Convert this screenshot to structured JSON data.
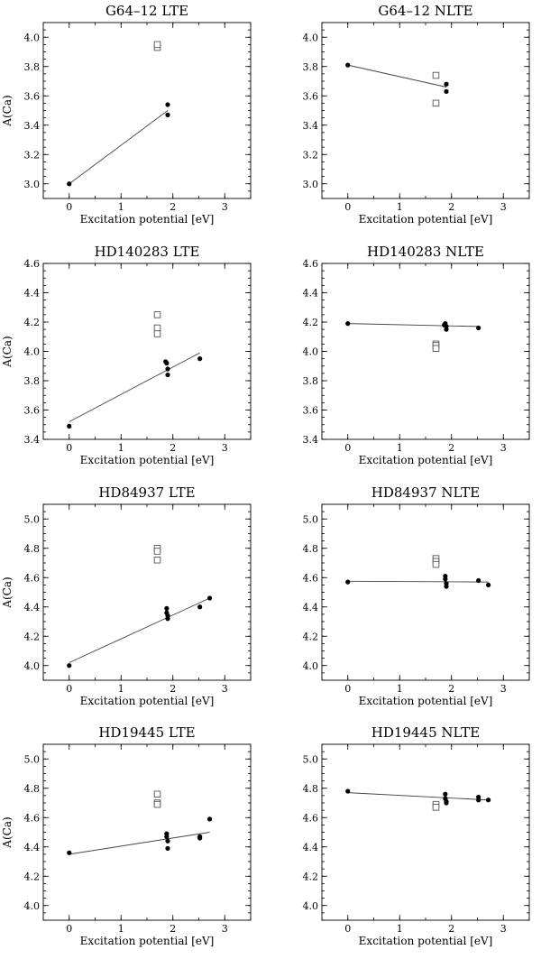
{
  "chart_data": [
    {
      "type": "scatter",
      "title": "G64–12 LTE",
      "xlabel": "Excitation potential [eV]",
      "ylabel": "A(Ca)",
      "xlim": [
        -0.5,
        3.5
      ],
      "ylim": [
        2.9,
        4.1
      ],
      "xticks": [
        0,
        1,
        2,
        3
      ],
      "yticks": [
        3.0,
        3.2,
        3.4,
        3.6,
        3.8,
        4.0
      ],
      "series": [
        {
          "marker": "filled-circle",
          "points": [
            [
              0.0,
              3.0
            ],
            [
              1.9,
              3.47
            ],
            [
              1.9,
              3.54
            ]
          ]
        },
        {
          "marker": "open-square",
          "points": [
            [
              1.7,
              3.93
            ],
            [
              1.7,
              3.95
            ]
          ]
        }
      ],
      "fit": [
        [
          0.0,
          3.0
        ],
        [
          1.9,
          3.5
        ]
      ]
    },
    {
      "type": "scatter",
      "title": "G64–12 NLTE",
      "xlabel": "Excitation potential [eV]",
      "ylabel": "",
      "xlim": [
        -0.5,
        3.5
      ],
      "ylim": [
        2.9,
        4.1
      ],
      "xticks": [
        0,
        1,
        2,
        3
      ],
      "yticks": [
        3.0,
        3.2,
        3.4,
        3.6,
        3.8,
        4.0
      ],
      "series": [
        {
          "marker": "filled-circle",
          "points": [
            [
              0.0,
              3.81
            ],
            [
              1.9,
              3.63
            ],
            [
              1.9,
              3.68
            ]
          ]
        },
        {
          "marker": "open-square",
          "points": [
            [
              1.7,
              3.74
            ],
            [
              1.7,
              3.55
            ]
          ]
        }
      ],
      "fit": [
        [
          0.0,
          3.81
        ],
        [
          1.9,
          3.66
        ]
      ]
    },
    {
      "type": "scatter",
      "title": "HD140283 LTE",
      "xlabel": "Excitation potential [eV]",
      "ylabel": "A(Ca)",
      "xlim": [
        -0.5,
        3.5
      ],
      "ylim": [
        3.4,
        4.6
      ],
      "xticks": [
        0,
        1,
        2,
        3
      ],
      "yticks": [
        3.4,
        3.6,
        3.8,
        4.0,
        4.2,
        4.4,
        4.6
      ],
      "series": [
        {
          "marker": "filled-circle",
          "points": [
            [
              0.0,
              3.49
            ],
            [
              1.86,
              3.93
            ],
            [
              1.88,
              3.92
            ],
            [
              1.9,
              3.88
            ],
            [
              1.9,
              3.84
            ],
            [
              2.52,
              3.95
            ]
          ]
        },
        {
          "marker": "open-square",
          "points": [
            [
              1.7,
              4.25
            ],
            [
              1.7,
              4.16
            ],
            [
              1.7,
              4.12
            ]
          ]
        }
      ],
      "fit": [
        [
          0.0,
          3.52
        ],
        [
          2.52,
          3.99
        ]
      ]
    },
    {
      "type": "scatter",
      "title": "HD140283 NLTE",
      "xlabel": "Excitation potential [eV]",
      "ylabel": "",
      "xlim": [
        -0.5,
        3.5
      ],
      "ylim": [
        3.4,
        4.6
      ],
      "xticks": [
        0,
        1,
        2,
        3
      ],
      "yticks": [
        3.4,
        3.6,
        3.8,
        4.0,
        4.2,
        4.4,
        4.6
      ],
      "series": [
        {
          "marker": "filled-circle",
          "points": [
            [
              0.0,
              4.19
            ],
            [
              1.86,
              4.18
            ],
            [
              1.88,
              4.19
            ],
            [
              1.9,
              4.15
            ],
            [
              1.9,
              4.17
            ],
            [
              2.52,
              4.16
            ]
          ]
        },
        {
          "marker": "open-square",
          "points": [
            [
              1.7,
              4.05
            ],
            [
              1.7,
              4.04
            ],
            [
              1.7,
              4.02
            ]
          ]
        }
      ],
      "fit": [
        [
          0.0,
          4.19
        ],
        [
          2.52,
          4.17
        ]
      ]
    },
    {
      "type": "scatter",
      "title": "HD84937 LTE",
      "xlabel": "Excitation potential [eV]",
      "ylabel": "A(Ca)",
      "xlim": [
        -0.5,
        3.5
      ],
      "ylim": [
        3.9,
        5.1
      ],
      "xticks": [
        0,
        1,
        2,
        3
      ],
      "yticks": [
        4.0,
        4.2,
        4.4,
        4.6,
        4.8,
        5.0
      ],
      "series": [
        {
          "marker": "filled-circle",
          "points": [
            [
              0.0,
              4.0
            ],
            [
              1.88,
              4.39
            ],
            [
              1.88,
              4.36
            ],
            [
              1.9,
              4.34
            ],
            [
              1.9,
              4.32
            ],
            [
              2.52,
              4.4
            ],
            [
              2.71,
              4.46
            ]
          ]
        },
        {
          "marker": "open-square",
          "points": [
            [
              1.7,
              4.8
            ],
            [
              1.7,
              4.78
            ],
            [
              1.7,
              4.72
            ]
          ]
        }
      ],
      "fit": [
        [
          0.0,
          4.02
        ],
        [
          2.71,
          4.46
        ]
      ]
    },
    {
      "type": "scatter",
      "title": "HD84937 NLTE",
      "xlabel": "Excitation potential [eV]",
      "ylabel": "",
      "xlim": [
        -0.5,
        3.5
      ],
      "ylim": [
        3.9,
        5.1
      ],
      "xticks": [
        0,
        1,
        2,
        3
      ],
      "yticks": [
        4.0,
        4.2,
        4.4,
        4.6,
        4.8,
        5.0
      ],
      "series": [
        {
          "marker": "filled-circle",
          "points": [
            [
              0.0,
              4.57
            ],
            [
              1.88,
              4.61
            ],
            [
              1.88,
              4.59
            ],
            [
              1.9,
              4.56
            ],
            [
              1.9,
              4.54
            ],
            [
              2.52,
              4.58
            ],
            [
              2.71,
              4.55
            ]
          ]
        },
        {
          "marker": "open-square",
          "points": [
            [
              1.7,
              4.73
            ],
            [
              1.7,
              4.71
            ],
            [
              1.7,
              4.69
            ]
          ]
        }
      ],
      "fit": [
        [
          0.0,
          4.575
        ],
        [
          2.71,
          4.57
        ]
      ]
    },
    {
      "type": "scatter",
      "title": "HD19445 LTE",
      "xlabel": "Excitation potential [eV]",
      "ylabel": "A(Ca)",
      "xlim": [
        -0.5,
        3.5
      ],
      "ylim": [
        3.9,
        5.1
      ],
      "xticks": [
        0,
        1,
        2,
        3
      ],
      "yticks": [
        4.0,
        4.2,
        4.4,
        4.6,
        4.8,
        5.0
      ],
      "series": [
        {
          "marker": "filled-circle",
          "points": [
            [
              0.0,
              4.36
            ],
            [
              1.88,
              4.49
            ],
            [
              1.88,
              4.47
            ],
            [
              1.9,
              4.44
            ],
            [
              1.9,
              4.39
            ],
            [
              2.52,
              4.47
            ],
            [
              2.52,
              4.46
            ],
            [
              2.71,
              4.59
            ]
          ]
        },
        {
          "marker": "open-square",
          "points": [
            [
              1.7,
              4.76
            ],
            [
              1.7,
              4.7
            ],
            [
              1.7,
              4.69
            ]
          ]
        }
      ],
      "fit": [
        [
          0.0,
          4.35
        ],
        [
          2.71,
          4.5
        ]
      ]
    },
    {
      "type": "scatter",
      "title": "HD19445 NLTE",
      "xlabel": "Excitation potential [eV]",
      "ylabel": "",
      "xlim": [
        -0.5,
        3.5
      ],
      "ylim": [
        3.9,
        5.1
      ],
      "xticks": [
        0,
        1,
        2,
        3
      ],
      "yticks": [
        4.0,
        4.2,
        4.4,
        4.6,
        4.8,
        5.0
      ],
      "series": [
        {
          "marker": "filled-circle",
          "points": [
            [
              0.0,
              4.78
            ],
            [
              1.88,
              4.76
            ],
            [
              1.88,
              4.73
            ],
            [
              1.9,
              4.71
            ],
            [
              1.9,
              4.7
            ],
            [
              2.52,
              4.74
            ],
            [
              2.52,
              4.72
            ],
            [
              2.71,
              4.72
            ]
          ]
        },
        {
          "marker": "open-square",
          "points": [
            [
              1.7,
              4.69
            ],
            [
              1.7,
              4.67
            ]
          ]
        }
      ],
      "fit": [
        [
          0.0,
          4.77
        ],
        [
          2.71,
          4.72
        ]
      ]
    }
  ]
}
